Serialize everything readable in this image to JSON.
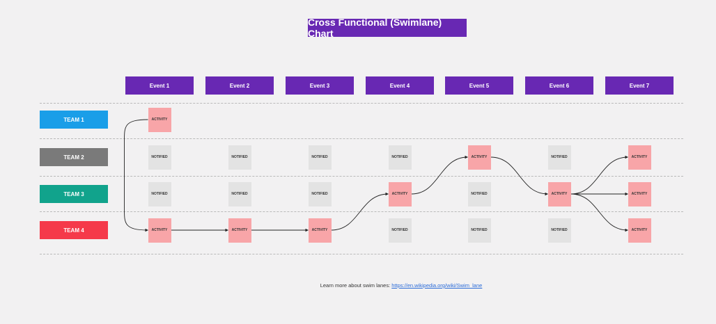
{
  "title": "Cross Functional (Swimlane) Chart",
  "colors": {
    "header": "#6828b3",
    "activity": "#f8a5a8",
    "notified": "#e3e3e3",
    "link": "#2a6bd8"
  },
  "events": [
    "Event 1",
    "Event 2",
    "Event 3",
    "Event 4",
    "Event 5",
    "Event 6",
    "Event 7"
  ],
  "teams": [
    {
      "label": "TEAM 1",
      "color": "#1a9ee8"
    },
    {
      "label": "TEAM 2",
      "color": "#7a7a7a"
    },
    {
      "label": "TEAM 3",
      "color": "#11a38c"
    },
    {
      "label": "TEAM 4",
      "color": "#f5394a"
    }
  ],
  "cells": [
    [
      {
        "event": 0,
        "type": "activity",
        "label": "ACTIVITY"
      }
    ],
    [
      {
        "event": 0,
        "type": "notified",
        "label": "NOTIFIED"
      },
      {
        "event": 1,
        "type": "notified",
        "label": "NOTIFIED"
      },
      {
        "event": 2,
        "type": "notified",
        "label": "NOTIFIED"
      },
      {
        "event": 3,
        "type": "notified",
        "label": "NOTIFIED"
      },
      {
        "event": 4,
        "type": "activity",
        "label": "ACTIVITY"
      },
      {
        "event": 5,
        "type": "notified",
        "label": "NOTIFIED"
      },
      {
        "event": 6,
        "type": "activity",
        "label": "ACTIVITY"
      }
    ],
    [
      {
        "event": 0,
        "type": "notified",
        "label": "NOTIFIED"
      },
      {
        "event": 1,
        "type": "notified",
        "label": "NOTIFIED"
      },
      {
        "event": 2,
        "type": "notified",
        "label": "NOTIFIED"
      },
      {
        "event": 3,
        "type": "activity",
        "label": "ACTIVITY"
      },
      {
        "event": 4,
        "type": "notified",
        "label": "NOTIFIED"
      },
      {
        "event": 5,
        "type": "activity",
        "label": "ACTIVITY"
      },
      {
        "event": 6,
        "type": "activity",
        "label": "ACTIVITY"
      }
    ],
    [
      {
        "event": 0,
        "type": "activity",
        "label": "ACTIVITY"
      },
      {
        "event": 1,
        "type": "activity",
        "label": "ACTIVITY"
      },
      {
        "event": 2,
        "type": "activity",
        "label": "ACTIVITY"
      },
      {
        "event": 3,
        "type": "notified",
        "label": "NOTIFIED"
      },
      {
        "event": 4,
        "type": "notified",
        "label": "NOTIFIED"
      },
      {
        "event": 5,
        "type": "notified",
        "label": "NOTIFIED"
      },
      {
        "event": 6,
        "type": "activity",
        "label": "ACTIVITY"
      }
    ]
  ],
  "flows": [
    {
      "from": [
        0,
        0
      ],
      "to": [
        3,
        0
      ]
    },
    {
      "from": [
        3,
        0
      ],
      "to": [
        3,
        1
      ]
    },
    {
      "from": [
        3,
        1
      ],
      "to": [
        3,
        2
      ]
    },
    {
      "from": [
        3,
        2
      ],
      "to": [
        2,
        3
      ]
    },
    {
      "from": [
        2,
        3
      ],
      "to": [
        1,
        4
      ]
    },
    {
      "from": [
        1,
        4
      ],
      "to": [
        2,
        5
      ]
    },
    {
      "from": [
        2,
        5
      ],
      "to": [
        1,
        6
      ]
    },
    {
      "from": [
        2,
        5
      ],
      "to": [
        2,
        6
      ]
    },
    {
      "from": [
        2,
        5
      ],
      "to": [
        3,
        6
      ]
    }
  ],
  "footer": {
    "text": "Learn more about swim lanes: ",
    "link": "https://en.wikipedia.org/wiki/Swim_lane"
  }
}
